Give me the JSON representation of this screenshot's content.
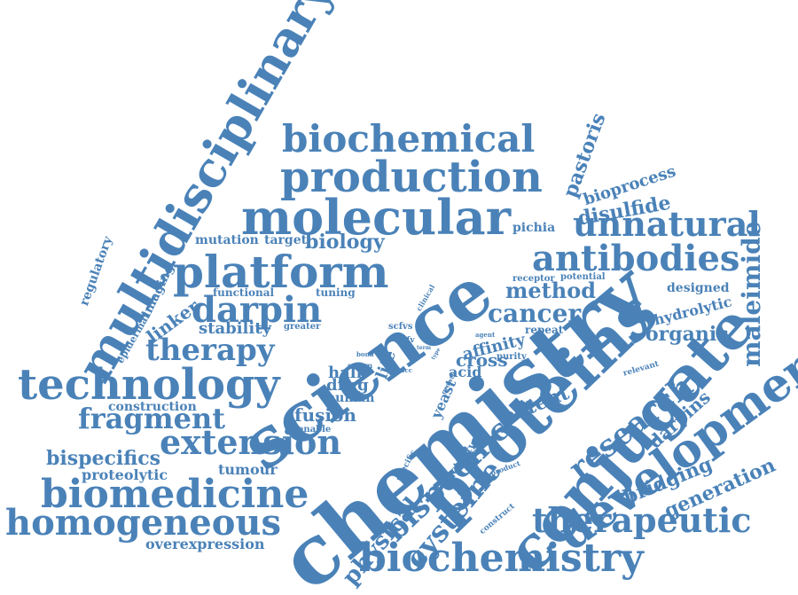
{
  "color": "#4a82b8",
  "words": [
    "chemistry",
    "science",
    "proteins",
    "conjugate",
    "multidisciplinary",
    "molecular",
    "production",
    "biochemical",
    "platform",
    "technology",
    "development",
    "biomedicine",
    "homogeneous",
    "biochemistry",
    "therapeutic",
    "antibodies",
    "unnatural",
    "darpin",
    "extension",
    "therapy",
    "fragment",
    "bispecific",
    "cysteine",
    "research",
    "cancer",
    "method",
    "maleimide",
    "organic",
    "pastoris",
    "bioprocess",
    "disulfide",
    "physical",
    "potent",
    "generation",
    "bridging",
    "darpins",
    "bispecifics",
    "biology",
    "linker",
    "fusion",
    "stability",
    "proteolytic",
    "tumour",
    "overexpression",
    "construction",
    "cross",
    "affinity",
    "acid",
    "half",
    "drug",
    "human",
    "life",
    "yeast",
    "hydrolytic",
    "designed",
    "mutation",
    "target",
    "regulatory",
    "imaging",
    "epidermal",
    "functional",
    "tuning",
    "pichia",
    "potential",
    "receptor",
    "repeat",
    "purity",
    "greater",
    "scfvs",
    "scfv",
    "clinical",
    "serum",
    "bond",
    "agent",
    "enable",
    "activity",
    "specific",
    "construct",
    "product",
    "relevant",
    "growth",
    "acc",
    "term",
    "type"
  ]
}
